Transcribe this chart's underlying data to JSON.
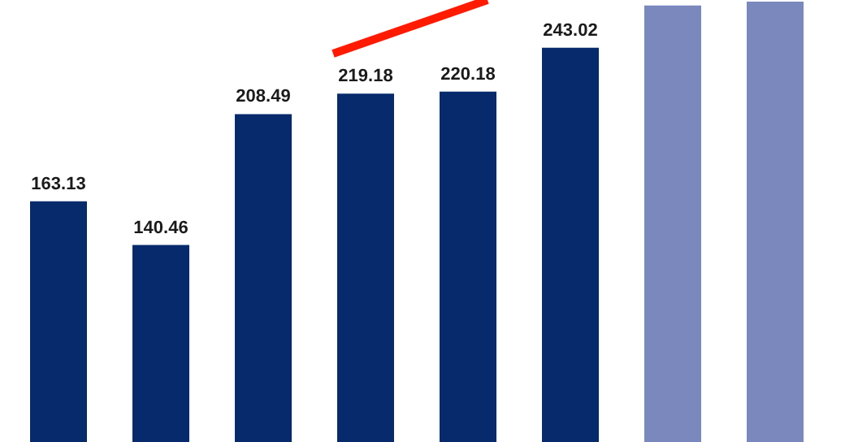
{
  "chart_data": {
    "type": "bar",
    "categories": [
      null,
      null,
      null,
      null,
      null,
      null,
      null,
      null
    ],
    "values": [
      163.13,
      140.46,
      208.49,
      219.18,
      220.18,
      243.02,
      265,
      267
    ],
    "value_labels": [
      "163.13",
      "140.46",
      "208.49",
      "219.18",
      "220.18",
      "243.02",
      null,
      null
    ],
    "colors": [
      "#062a6b",
      "#062a6b",
      "#062a6b",
      "#062a6b",
      "#062a6b",
      "#062a6b",
      "#7a88bd",
      "#7a88bd"
    ]
  }
}
